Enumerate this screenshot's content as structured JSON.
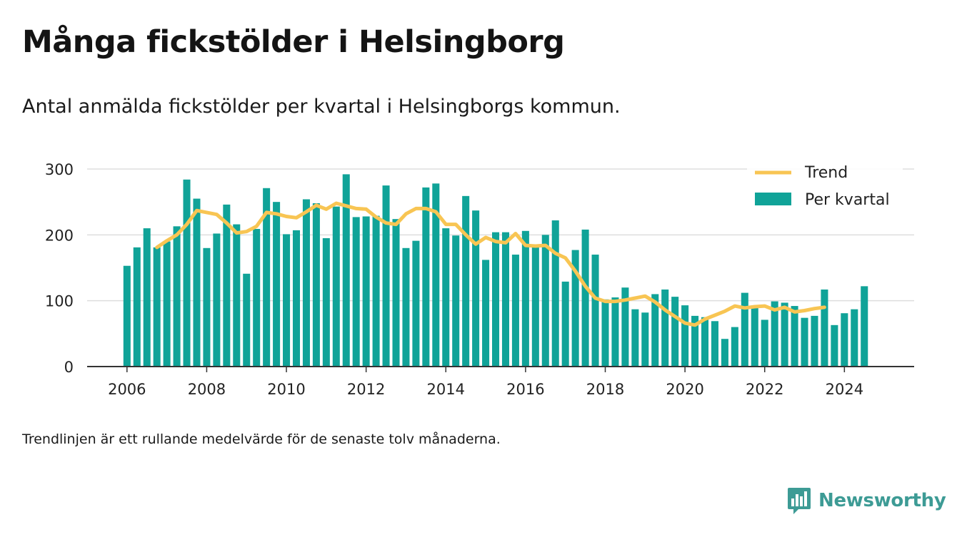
{
  "header": {
    "title": "Många fickstölder i Helsingborg",
    "subtitle": "Antal anmälda fickstölder per kvartal i Helsingborgs kommun."
  },
  "footer": {
    "note": "Trendlinjen är ett rullande medelvärde för de senaste tolv månaderna.",
    "brand": "Newsworthy"
  },
  "colors": {
    "bar": "#10a398",
    "trend": "#f8c553",
    "grid": "#dddddd",
    "axis": "#333333",
    "brand": "#3d9b95"
  },
  "icons": {
    "brand_logo": "bar-chart-speech-bubble-icon"
  },
  "chart_data": {
    "type": "bar",
    "title": "Många fickstölder i Helsingborg",
    "subtitle": "Antal anmälda fickstölder per kvartal i Helsingborgs kommun.",
    "xlabel": "",
    "ylabel": "",
    "ylim": [
      0,
      300
    ],
    "xlim": [
      2005.0,
      2025.75
    ],
    "yticks": [
      0,
      100,
      200,
      300
    ],
    "xticks": [
      2006,
      2008,
      2010,
      2012,
      2014,
      2016,
      2018,
      2020,
      2022,
      2024
    ],
    "grid": true,
    "legend": {
      "position": "top-right",
      "entries": [
        "Trend",
        "Per kvartal"
      ]
    },
    "series": [
      {
        "name": "Per kvartal",
        "type": "bar",
        "start": 2006,
        "step": 0.25,
        "values": [
          153,
          181,
          210,
          181,
          190,
          213,
          284,
          255,
          180,
          202,
          246,
          216,
          141,
          209,
          271,
          250,
          201,
          207,
          254,
          248,
          195,
          243,
          292,
          227,
          228,
          229,
          275,
          224,
          180,
          191,
          272,
          278,
          210,
          199,
          259,
          237,
          162,
          204,
          204,
          170,
          206,
          181,
          200,
          222,
          129,
          177,
          208,
          170,
          102,
          105,
          120,
          87,
          82,
          110,
          117,
          106,
          93,
          77,
          75,
          69,
          42,
          60,
          112,
          89,
          71,
          99,
          97,
          92,
          74,
          77,
          117,
          63,
          81,
          87,
          122
        ]
      },
      {
        "name": "Trend",
        "type": "line",
        "start": 2006.75,
        "step": 0.25,
        "values": [
          181,
          191,
          200,
          216,
          237,
          234,
          231,
          218,
          203,
          205,
          213,
          234,
          232,
          228,
          226,
          235,
          245,
          239,
          248,
          244,
          240,
          239,
          227,
          218,
          216,
          232,
          240,
          240,
          235,
          216,
          216,
          200,
          186,
          196,
          190,
          188,
          202,
          184,
          183,
          184,
          172,
          165,
          145,
          122,
          104,
          99,
          99,
          101,
          104,
          107,
          98,
          86,
          76,
          66,
          63,
          72,
          78,
          84,
          92,
          89,
          91,
          92,
          86,
          90,
          83,
          85,
          88,
          90
        ]
      }
    ]
  }
}
